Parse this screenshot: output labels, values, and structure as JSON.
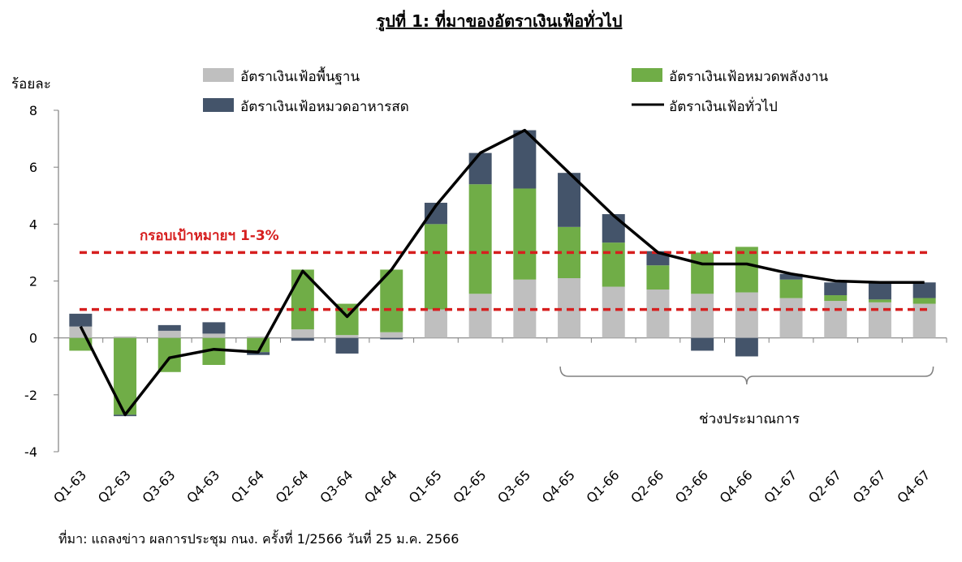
{
  "chart_data": {
    "type": "bar",
    "title": "รูปที่ 1: ที่มาของอัตราเงินเฟ้อทั่วไป",
    "ylabel": "ร้อยละ",
    "ylim": [
      -4,
      8
    ],
    "yticks": [
      -4,
      -2,
      0,
      2,
      4,
      6,
      8
    ],
    "categories": [
      "Q1-63",
      "Q2-63",
      "Q3-63",
      "Q4-63",
      "Q1-64",
      "Q2-64",
      "Q3-64",
      "Q4-64",
      "Q1-65",
      "Q2-65",
      "Q3-65",
      "Q4-65",
      "Q1-66",
      "Q2-66",
      "Q3-66",
      "Q4-66",
      "Q1-67",
      "Q2-67",
      "Q3-67",
      "Q4-67"
    ],
    "stacked": true,
    "series": [
      {
        "name": "อัตราเงินเฟ้อพื้นฐาน",
        "kind": "bar",
        "color": "#bfbfbf",
        "values": [
          0.4,
          0.05,
          0.25,
          0.15,
          0.05,
          0.3,
          0.1,
          0.2,
          1.0,
          1.55,
          2.05,
          2.1,
          1.8,
          1.7,
          1.55,
          1.6,
          1.4,
          1.3,
          1.25,
          1.2
        ]
      },
      {
        "name": "อัตราเงินเฟ้อหมวดพลังงาน",
        "kind": "bar",
        "color": "#70ad47",
        "values": [
          -0.45,
          -2.7,
          -1.2,
          -0.95,
          -0.5,
          2.1,
          1.1,
          2.2,
          3.0,
          3.85,
          3.2,
          1.8,
          1.55,
          0.85,
          1.45,
          1.6,
          0.65,
          0.2,
          0.1,
          0.2
        ]
      },
      {
        "name": "อัตราเงินเฟ้อหมวดอาหารสด",
        "kind": "bar",
        "color": "#44546a",
        "values": [
          0.45,
          -0.05,
          0.2,
          0.4,
          -0.1,
          -0.1,
          -0.55,
          -0.05,
          0.75,
          1.1,
          2.05,
          1.9,
          1.0,
          0.5,
          -0.45,
          -0.65,
          0.2,
          0.45,
          0.6,
          0.55
        ]
      },
      {
        "name": "อัตราเงินเฟ้อทั่วไป",
        "kind": "line",
        "color": "#000000",
        "values": [
          0.4,
          -2.7,
          -0.7,
          -0.4,
          -0.5,
          2.35,
          0.75,
          2.4,
          4.65,
          6.5,
          7.3,
          5.8,
          4.3,
          3.0,
          2.6,
          2.6,
          2.25,
          2.0,
          1.95,
          1.95
        ]
      }
    ],
    "target_band": {
      "label": "กรอบเป้าหมายฯ 1-3%",
      "lower": 1,
      "upper": 3,
      "color": "#d61f1f"
    },
    "forecast": {
      "label": "ช่วงประมาณการ",
      "from": "Q4-65",
      "to": "Q4-67"
    },
    "legend_position": "top",
    "grid": false
  },
  "source_note": "ที่มา: แถลงข่าว ผลการประชุม กนง. ครั้งที่ 1/2566 วันที่ 25 ม.ค. 2566"
}
